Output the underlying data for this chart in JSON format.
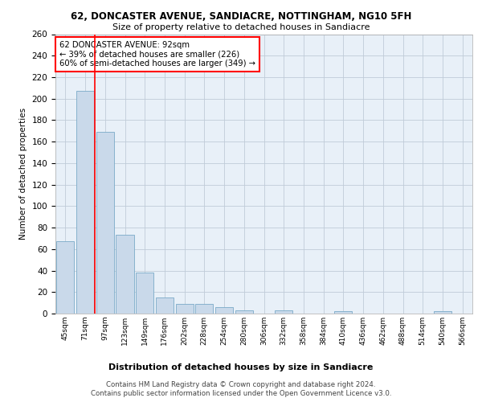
{
  "title1": "62, DONCASTER AVENUE, SANDIACRE, NOTTINGHAM, NG10 5FH",
  "title2": "Size of property relative to detached houses in Sandiacre",
  "xlabel": "Distribution of detached houses by size in Sandiacre",
  "ylabel": "Number of detached properties",
  "bin_labels": [
    "45sqm",
    "71sqm",
    "97sqm",
    "123sqm",
    "149sqm",
    "176sqm",
    "202sqm",
    "228sqm",
    "254sqm",
    "280sqm",
    "306sqm",
    "332sqm",
    "358sqm",
    "384sqm",
    "410sqm",
    "436sqm",
    "462sqm",
    "488sqm",
    "514sqm",
    "540sqm",
    "566sqm"
  ],
  "bar_values": [
    67,
    207,
    169,
    73,
    38,
    15,
    9,
    9,
    6,
    3,
    0,
    3,
    0,
    0,
    2,
    0,
    0,
    0,
    0,
    2,
    0
  ],
  "bar_color": "#c9d9ea",
  "bar_edge_color": "#7aaac8",
  "grid_color": "#c0ccd8",
  "background_color": "#e8f0f8",
  "red_line_x": 1.5,
  "annotation_text": "62 DONCASTER AVENUE: 92sqm\n← 39% of detached houses are smaller (226)\n60% of semi-detached houses are larger (349) →",
  "annotation_box_color": "white",
  "annotation_box_edge": "red",
  "footer_text": "Contains HM Land Registry data © Crown copyright and database right 2024.\nContains public sector information licensed under the Open Government Licence v3.0.",
  "ylim": [
    0,
    260
  ],
  "yticks": [
    0,
    20,
    40,
    60,
    80,
    100,
    120,
    140,
    160,
    180,
    200,
    220,
    240,
    260
  ]
}
